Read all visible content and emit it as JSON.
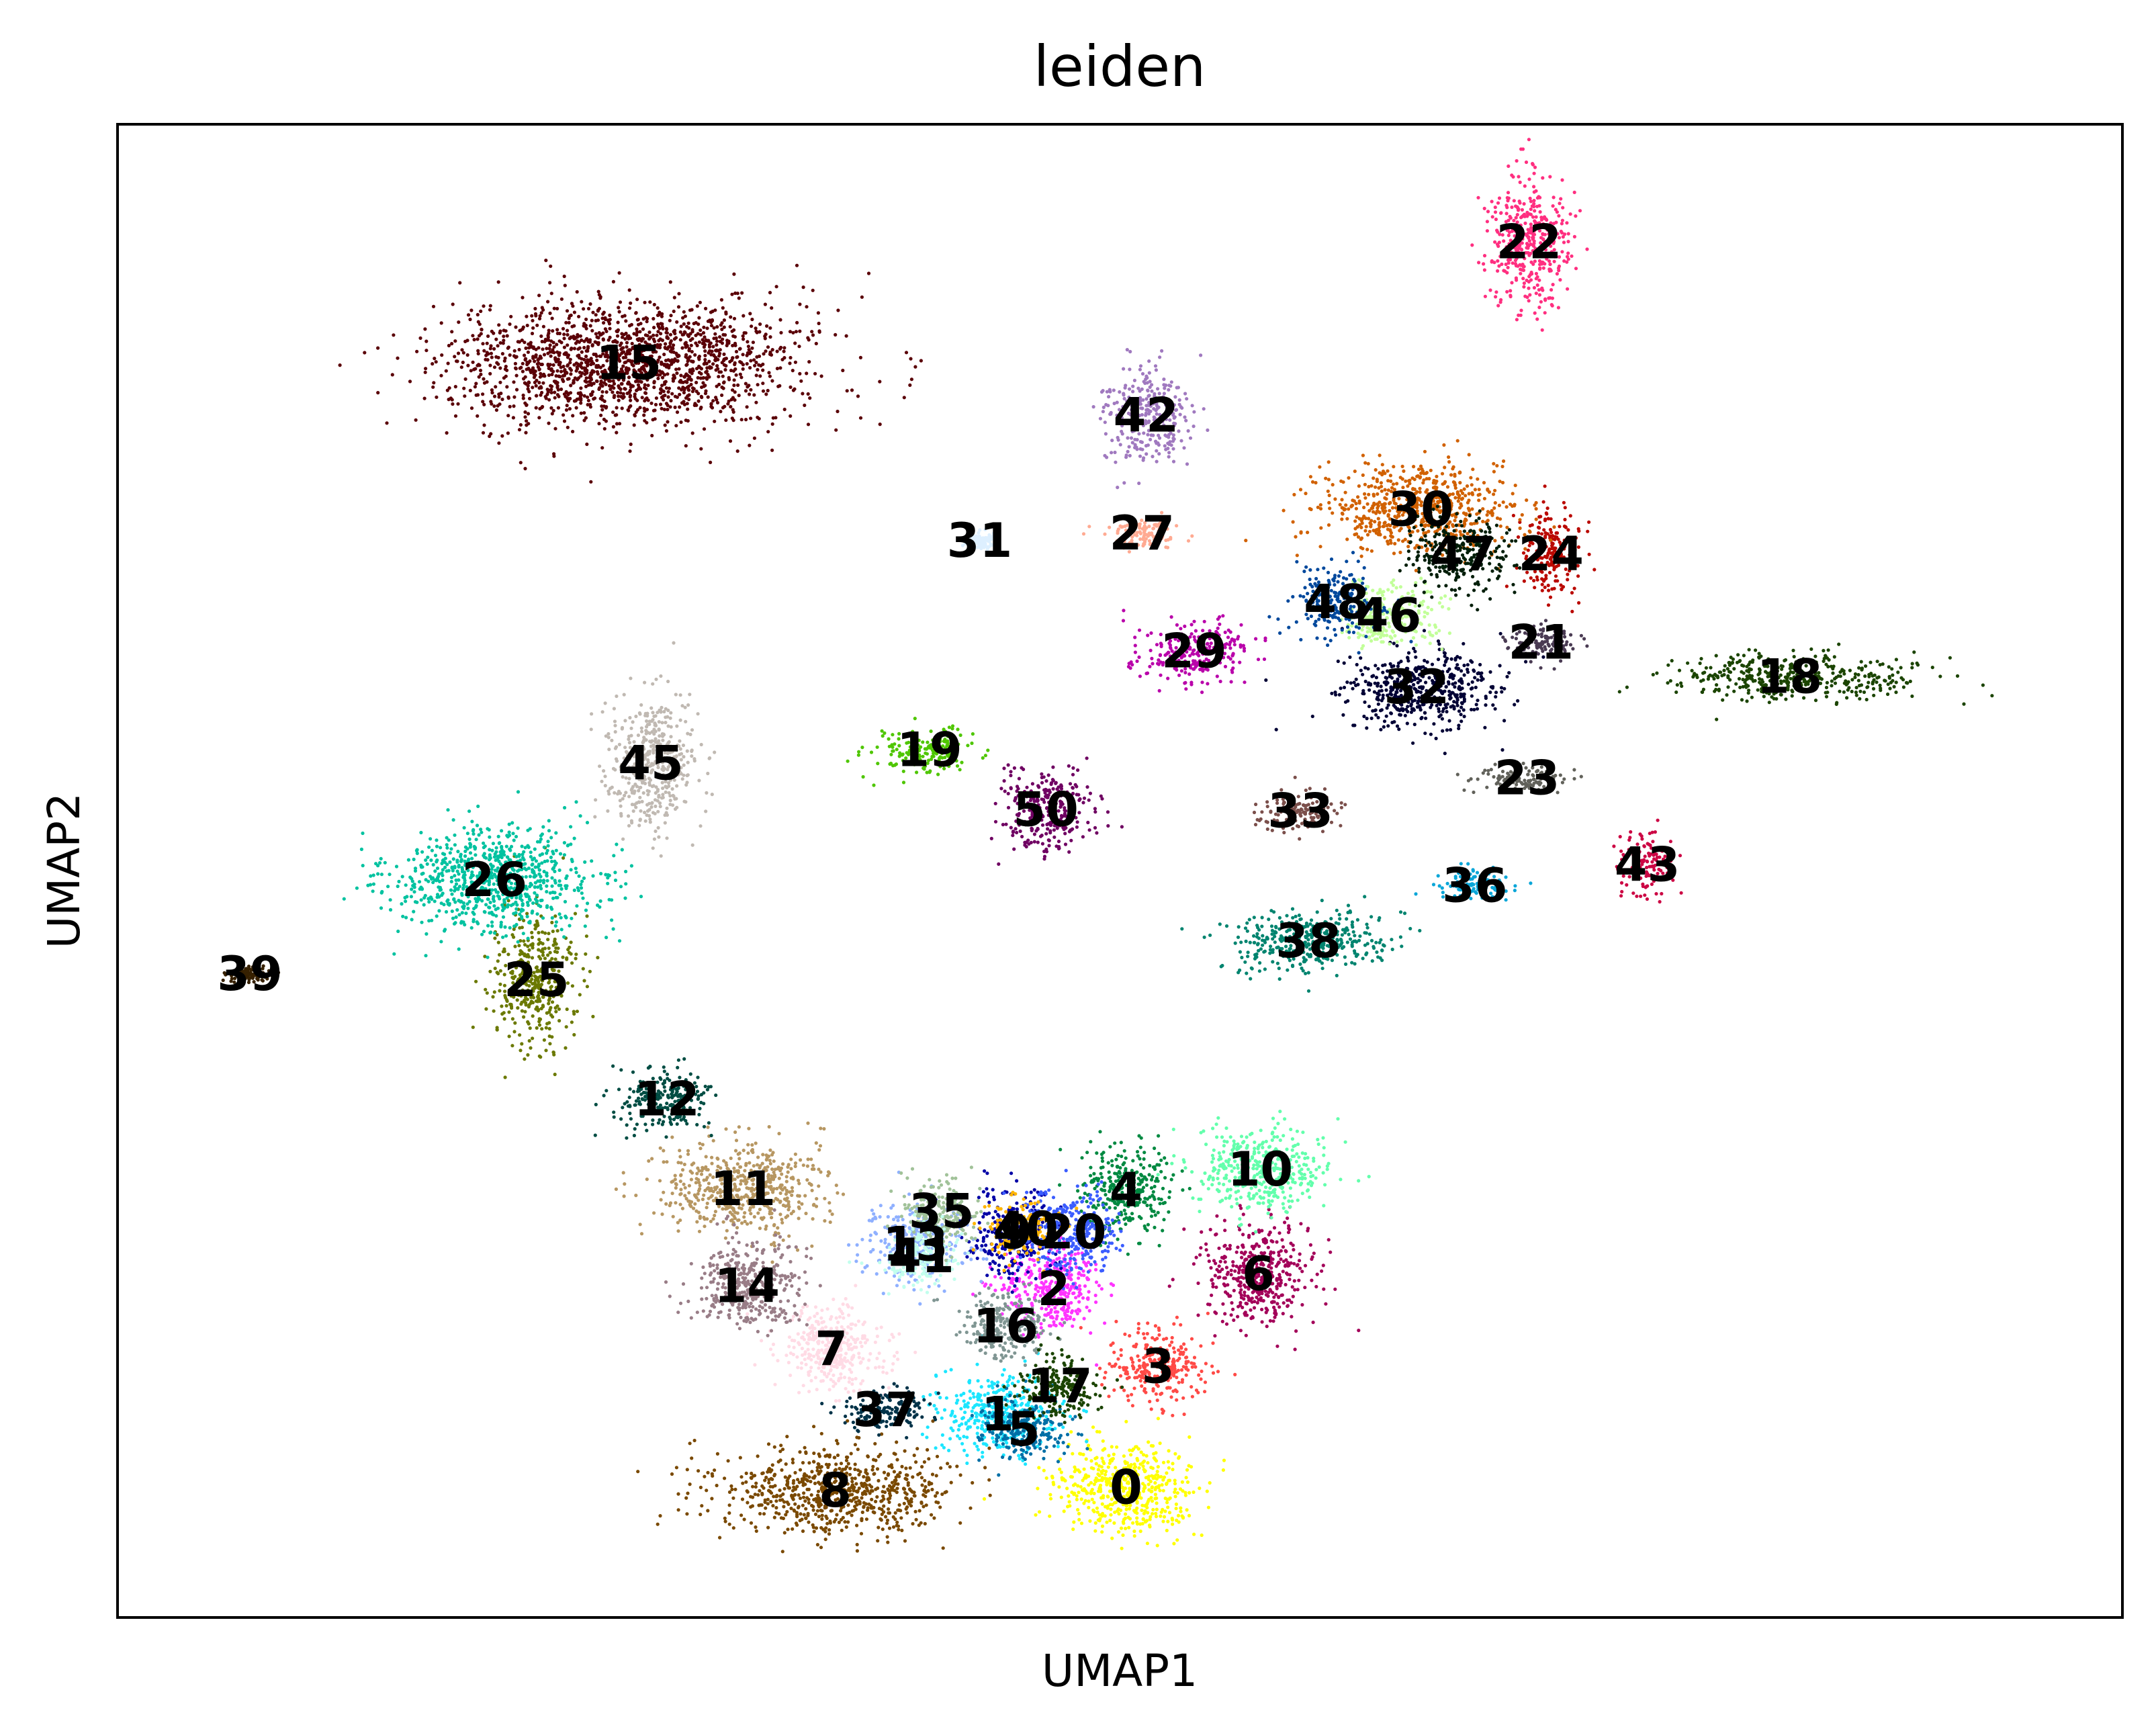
{
  "chart_data": {
    "type": "scatter",
    "title": "leiden",
    "xlabel": "UMAP1",
    "ylabel": "UMAP2",
    "xlim": [
      0,
      100
    ],
    "ylim": [
      0,
      100
    ],
    "ticks": "none",
    "grid": false,
    "legend": "on data",
    "clusters": [
      {
        "id": "0",
        "x": 50.3,
        "y": 8.7,
        "color": "#ffff00"
      },
      {
        "id": "1",
        "x": 43.9,
        "y": 13.6,
        "color": "#1ce6ff"
      },
      {
        "id": "2",
        "x": 46.7,
        "y": 22.0,
        "color": "#ff34ff"
      },
      {
        "id": "3",
        "x": 51.9,
        "y": 16.8,
        "color": "#ff4a46"
      },
      {
        "id": "4",
        "x": 50.3,
        "y": 28.6,
        "color": "#008941"
      },
      {
        "id": "5",
        "x": 45.2,
        "y": 12.6,
        "color": "#006fa6"
      },
      {
        "id": "6",
        "x": 56.9,
        "y": 23.0,
        "color": "#a30059"
      },
      {
        "id": "7",
        "x": 35.6,
        "y": 18.0,
        "color": "#ffdbe5"
      },
      {
        "id": "8",
        "x": 35.8,
        "y": 8.5,
        "color": "#7a4900"
      },
      {
        "id": "9",
        "x": 44.8,
        "y": 25.8,
        "color": "#0000a6"
      },
      {
        "id": "10",
        "x": 57.0,
        "y": 30.0,
        "color": "#63ffac"
      },
      {
        "id": "11",
        "x": 31.2,
        "y": 28.7,
        "color": "#b79762"
      },
      {
        "id": "12",
        "x": 27.4,
        "y": 34.7,
        "color": "#004d43"
      },
      {
        "id": "13",
        "x": 39.8,
        "y": 25.0,
        "color": "#8fb0ff"
      },
      {
        "id": "14",
        "x": 31.4,
        "y": 22.2,
        "color": "#997d87"
      },
      {
        "id": "15",
        "x": 25.5,
        "y": 84.0,
        "color": "#5a0007"
      },
      {
        "id": "16",
        "x": 44.3,
        "y": 19.5,
        "color": "#809693"
      },
      {
        "id": "17",
        "x": 47.0,
        "y": 15.5,
        "color": "#1b4400"
      },
      {
        "id": "18",
        "x": 83.4,
        "y": 63.0,
        "color": "#1b4400"
      },
      {
        "id": "19",
        "x": 40.5,
        "y": 58.1,
        "color": "#4fc601"
      },
      {
        "id": "20",
        "x": 47.7,
        "y": 25.8,
        "color": "#3b5dff"
      },
      {
        "id": "21",
        "x": 71.0,
        "y": 65.3,
        "color": "#4a3b53"
      },
      {
        "id": "22",
        "x": 70.4,
        "y": 92.1,
        "color": "#ff2f80"
      },
      {
        "id": "23",
        "x": 70.3,
        "y": 56.2,
        "color": "#61615a"
      },
      {
        "id": "24",
        "x": 71.5,
        "y": 71.2,
        "color": "#ba0900"
      },
      {
        "id": "25",
        "x": 20.9,
        "y": 42.7,
        "color": "#6b7900"
      },
      {
        "id": "26",
        "x": 18.8,
        "y": 49.4,
        "color": "#00c2a0"
      },
      {
        "id": "27",
        "x": 51.1,
        "y": 72.6,
        "color": "#ffaa92"
      },
      {
        "id": "29",
        "x": 53.7,
        "y": 64.7,
        "color": "#b903aa"
      },
      {
        "id": "30",
        "x": 65.0,
        "y": 74.2,
        "color": "#d16100"
      },
      {
        "id": "31",
        "x": 43.0,
        "y": 72.1,
        "color": "#ddefff"
      },
      {
        "id": "32",
        "x": 64.8,
        "y": 62.3,
        "color": "#000035"
      },
      {
        "id": "33",
        "x": 59.0,
        "y": 54.0,
        "color": "#7b4f4b"
      },
      {
        "id": "35",
        "x": 41.1,
        "y": 27.2,
        "color": "#a1c299"
      },
      {
        "id": "36",
        "x": 67.7,
        "y": 49.0,
        "color": "#0aa6d8"
      },
      {
        "id": "37",
        "x": 38.3,
        "y": 13.9,
        "color": "#013349"
      },
      {
        "id": "38",
        "x": 59.4,
        "y": 45.3,
        "color": "#00846f"
      },
      {
        "id": "39",
        "x": 6.6,
        "y": 43.1,
        "color": "#372101"
      },
      {
        "id": "40",
        "x": 45.3,
        "y": 26.0,
        "color": "#ffb500"
      },
      {
        "id": "41",
        "x": 40.1,
        "y": 24.2,
        "color": "#c2ffed"
      },
      {
        "id": "42",
        "x": 51.3,
        "y": 80.5,
        "color": "#a079bf"
      },
      {
        "id": "43",
        "x": 76.3,
        "y": 50.4,
        "color": "#cc0744"
      },
      {
        "id": "45",
        "x": 26.6,
        "y": 57.2,
        "color": "#c0b9b2"
      },
      {
        "id": "46",
        "x": 63.4,
        "y": 67.1,
        "color": "#c2ff99"
      },
      {
        "id": "47",
        "x": 67.1,
        "y": 71.2,
        "color": "#001e09"
      },
      {
        "id": "48",
        "x": 60.8,
        "y": 68.0,
        "color": "#00489c"
      },
      {
        "id": "50",
        "x": 46.3,
        "y": 54.1,
        "color": "#6f0062"
      }
    ]
  }
}
